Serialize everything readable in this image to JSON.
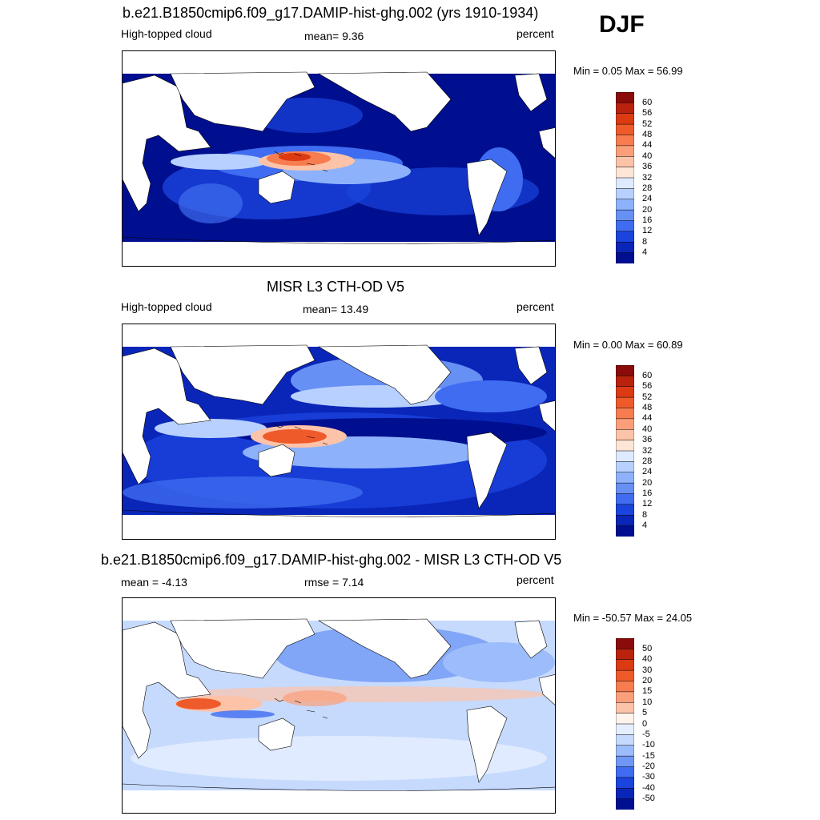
{
  "season": "DJF",
  "panels": [
    {
      "title": "b.e21.B1850cmip6.f09_g17.DAMIP-hist-ghg.002 (yrs 1910-1934)",
      "left_label": "High-topped cloud",
      "center_label": "mean=   9.36",
      "right_label": "percent",
      "minmax": "Min =   0.05 Max =  56.99",
      "colorbar_ticks": [
        "60",
        "56",
        "52",
        "48",
        "44",
        "40",
        "36",
        "32",
        "28",
        "24",
        "20",
        "16",
        "12",
        "8",
        "4"
      ],
      "colorbar_colors": [
        "#8b0a0a",
        "#b9230d",
        "#dc3a12",
        "#ef5a2b",
        "#f77c4f",
        "#fb9f7a",
        "#fdc3a8",
        "#fde6d6",
        "#ddeaff",
        "#b8d0ff",
        "#8db2fb",
        "#6790f5",
        "#3f6cf0",
        "#1a44dd",
        "#0a26b8",
        "#000f8f"
      ]
    },
    {
      "title": "MISR L3 CTH-OD V5",
      "left_label": "High-topped cloud",
      "center_label": "mean=  13.49",
      "right_label": "percent",
      "minmax": "Min =   0.00 Max =  60.89",
      "colorbar_ticks": [
        "60",
        "56",
        "52",
        "48",
        "44",
        "40",
        "36",
        "32",
        "28",
        "24",
        "20",
        "16",
        "12",
        "8",
        "4"
      ],
      "colorbar_colors": [
        "#8b0a0a",
        "#b9230d",
        "#dc3a12",
        "#ef5a2b",
        "#f77c4f",
        "#fb9f7a",
        "#fdc3a8",
        "#fde6d6",
        "#ddeaff",
        "#b8d0ff",
        "#8db2fb",
        "#6790f5",
        "#3f6cf0",
        "#1a44dd",
        "#0a26b8",
        "#000f8f"
      ]
    },
    {
      "title": "b.e21.B1850cmip6.f09_g17.DAMIP-hist-ghg.002 - MISR L3 CTH-OD V5",
      "left_label": "mean =  -4.13",
      "center_label": "rmse =   7.14",
      "right_label": "percent",
      "minmax": "Min = -50.57 Max =  24.05",
      "colorbar_ticks": [
        "50",
        "40",
        "30",
        "20",
        "15",
        "10",
        "5",
        "0",
        "-5",
        "-10",
        "-15",
        "-20",
        "-30",
        "-40",
        "-50"
      ],
      "colorbar_colors": [
        "#8b0a0a",
        "#b9230d",
        "#dc3a12",
        "#ef5a2b",
        "#f77c4f",
        "#fb9f7a",
        "#fdc3a8",
        "#fff4ec",
        "#e6efff",
        "#c6dafe",
        "#9dbcfb",
        "#6f97f5",
        "#3f6cf0",
        "#1a44dd",
        "#0a26b8",
        "#000f8f"
      ]
    }
  ]
}
